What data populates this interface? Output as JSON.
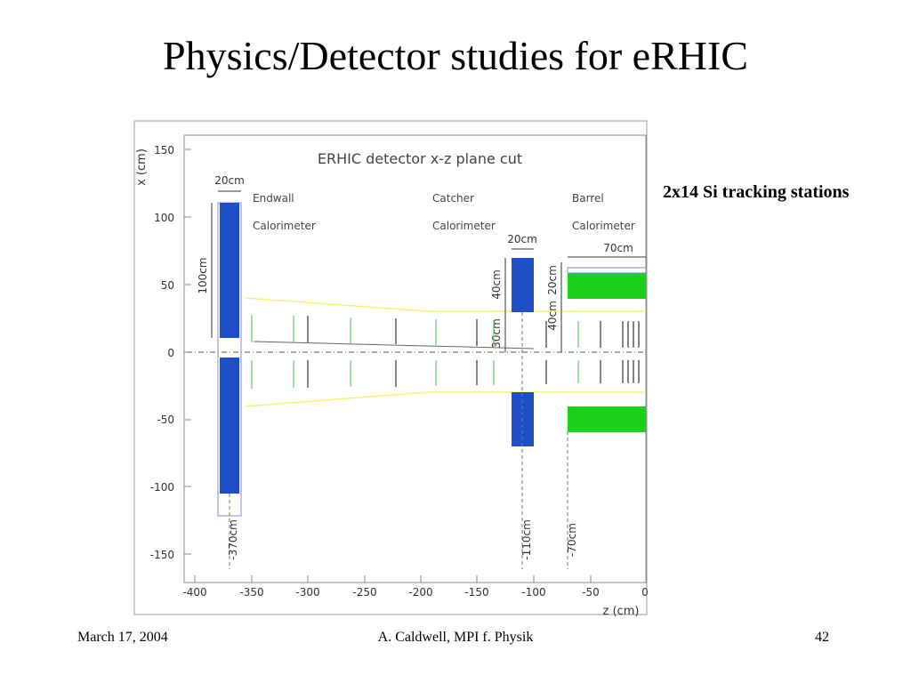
{
  "slide": {
    "title": "Physics/Detector studies for eRHIC",
    "side_label": "2x14 Si tracking stations",
    "footer": {
      "date": "March 17, 2004",
      "author": "A. Caldwell, MPI f. Physik",
      "page": "42"
    }
  },
  "figure": {
    "title": "ERHIC detector x-z plane cut",
    "x_axis_label": "z (cm)",
    "y_axis_label": "x (cm)",
    "x_range": [
      -400,
      0
    ],
    "y_range": [
      -160,
      160
    ],
    "x_ticks": [
      "-400",
      "-350",
      "-300",
      "-250",
      "-200",
      "-150",
      "-100",
      "-50",
      "0"
    ],
    "y_ticks": [
      "150",
      "100",
      "50",
      "0",
      "-50",
      "-100",
      "-150"
    ],
    "labels": {
      "endwall_1": "Endwall",
      "endwall_2": "Calorimeter",
      "catcher_1": "Catcher",
      "catcher_2": "Calorimeter",
      "barrel_1": "Barrel",
      "barrel_2": "Calorimeter"
    },
    "dimensions": {
      "endwall_width": "20cm",
      "endwall_height": "100cm",
      "endwall_pos": "-370cm",
      "catcher_width": "20cm",
      "catcher_height": "40cm",
      "catcher_gap": "30cm",
      "catcher_pos": "-110cm",
      "barrel_length": "70cm",
      "barrel_gap": "40cm",
      "barrel_thickness": "20cm",
      "barrel_pos": "-70cm"
    },
    "colors": {
      "calorimeter_blue": "#1f4fc8",
      "barrel_green": "#19d219",
      "beam_yellow": "#ffff66",
      "frame": "#888888"
    }
  }
}
